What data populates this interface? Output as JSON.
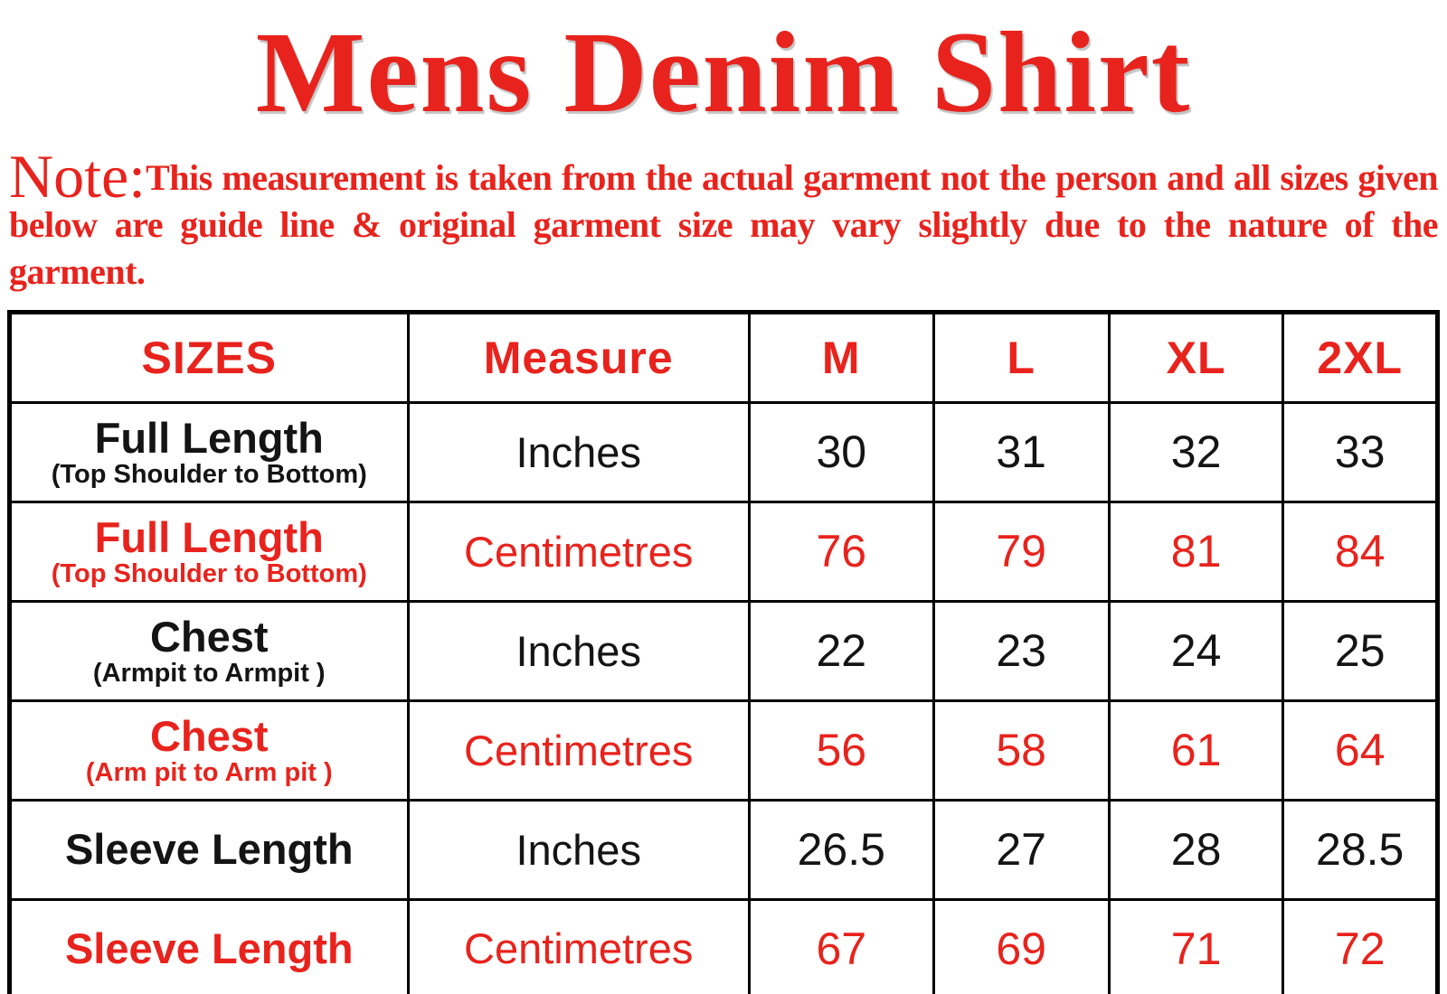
{
  "title": "Mens Denim Shirt",
  "note": {
    "label": "Note:",
    "text": "This measurement is taken from the actual garment not the person and all sizes given below are guide line & original garment size may vary slightly due to the nature of the garment."
  },
  "colors": {
    "red": "#e8231d",
    "black": "#141414"
  },
  "chart_data": {
    "type": "table",
    "title": "Mens Denim Shirt",
    "columns": [
      "SIZES",
      "Measure",
      "M",
      "L",
      "XL",
      "2XL"
    ],
    "rows": [
      {
        "label": "Full Length",
        "sublabel": "(Top Shoulder to Bottom)",
        "measure": "Inches",
        "values": [
          "30",
          "31",
          "32",
          "33"
        ],
        "text_color": "black"
      },
      {
        "label": "Full Length",
        "sublabel": "(Top Shoulder to Bottom)",
        "measure": "Centimetres",
        "values": [
          "76",
          "79",
          "81",
          "84"
        ],
        "text_color": "red"
      },
      {
        "label": "Chest",
        "sublabel": "(Armpit to Armpit )",
        "measure": "Inches",
        "values": [
          "22",
          "23",
          "24",
          "25"
        ],
        "text_color": "black"
      },
      {
        "label": "Chest",
        "sublabel": "(Arm pit to Arm pit )",
        "measure": "Centimetres",
        "values": [
          "56",
          "58",
          "61",
          "64"
        ],
        "text_color": "red"
      },
      {
        "label": "Sleeve Length",
        "sublabel": "",
        "measure": "Inches",
        "values": [
          "26.5",
          "27",
          "28",
          "28.5"
        ],
        "text_color": "black"
      },
      {
        "label": "Sleeve Length",
        "sublabel": "",
        "measure": "Centimetres",
        "values": [
          "67",
          "69",
          "71",
          "72"
        ],
        "text_color": "red"
      }
    ]
  }
}
